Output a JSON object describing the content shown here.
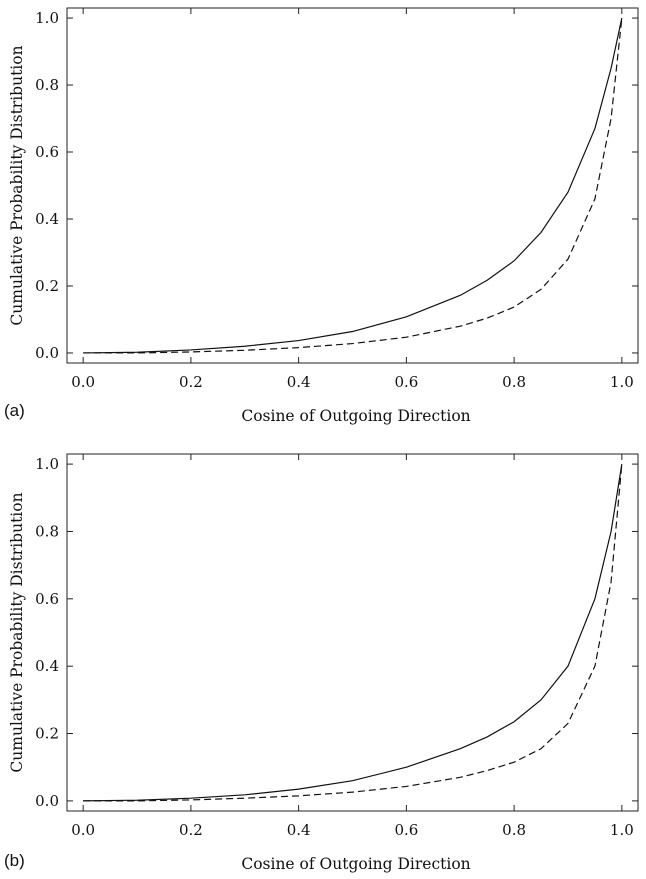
{
  "chart_data": [
    {
      "type": "line",
      "panel_label": "(a)",
      "xlabel": "Cosine of Outgoing Direction",
      "ylabel": "Cumulative Probability Distribution",
      "xlim": [
        -0.03,
        1.03
      ],
      "ylim": [
        -0.03,
        1.03
      ],
      "xticks": [
        "0.0",
        "0.2",
        "0.4",
        "0.6",
        "0.8",
        "1.0"
      ],
      "yticks": [
        "0.0",
        "0.2",
        "0.4",
        "0.6",
        "0.8",
        "1.0"
      ],
      "grid": false,
      "series": [
        {
          "style": "solid",
          "x": [
            0.0,
            0.1,
            0.2,
            0.3,
            0.4,
            0.5,
            0.6,
            0.7,
            0.75,
            0.8,
            0.85,
            0.9,
            0.95,
            0.98,
            1.0
          ],
          "y": [
            0.0,
            0.002,
            0.009,
            0.02,
            0.037,
            0.064,
            0.108,
            0.172,
            0.217,
            0.275,
            0.36,
            0.48,
            0.67,
            0.85,
            1.0
          ]
        },
        {
          "style": "dashed",
          "x": [
            0.0,
            0.1,
            0.2,
            0.3,
            0.4,
            0.5,
            0.6,
            0.7,
            0.75,
            0.8,
            0.85,
            0.9,
            0.95,
            0.98,
            1.0
          ],
          "y": [
            0.0,
            0.0,
            0.003,
            0.008,
            0.016,
            0.028,
            0.047,
            0.08,
            0.104,
            0.137,
            0.19,
            0.28,
            0.46,
            0.7,
            1.0
          ]
        }
      ]
    },
    {
      "type": "line",
      "panel_label": "(b)",
      "xlabel": "Cosine of Outgoing Direction",
      "ylabel": "Cumulative Probability Distribution",
      "xlim": [
        -0.03,
        1.03
      ],
      "ylim": [
        -0.03,
        1.03
      ],
      "xticks": [
        "0.0",
        "0.2",
        "0.4",
        "0.6",
        "0.8",
        "1.0"
      ],
      "yticks": [
        "0.0",
        "0.2",
        "0.4",
        "0.6",
        "0.8",
        "1.0"
      ],
      "grid": false,
      "series": [
        {
          "style": "solid",
          "x": [
            0.0,
            0.1,
            0.2,
            0.3,
            0.4,
            0.5,
            0.6,
            0.7,
            0.75,
            0.8,
            0.85,
            0.9,
            0.95,
            0.98,
            1.0
          ],
          "y": [
            0.0,
            0.002,
            0.008,
            0.018,
            0.035,
            0.06,
            0.1,
            0.155,
            0.19,
            0.235,
            0.3,
            0.4,
            0.6,
            0.8,
            1.0
          ]
        },
        {
          "style": "dashed",
          "x": [
            0.0,
            0.1,
            0.2,
            0.3,
            0.4,
            0.5,
            0.6,
            0.7,
            0.75,
            0.8,
            0.85,
            0.9,
            0.95,
            0.98,
            1.0
          ],
          "y": [
            0.0,
            0.0,
            0.003,
            0.008,
            0.015,
            0.026,
            0.043,
            0.07,
            0.09,
            0.115,
            0.155,
            0.23,
            0.4,
            0.65,
            1.0
          ]
        }
      ]
    }
  ]
}
